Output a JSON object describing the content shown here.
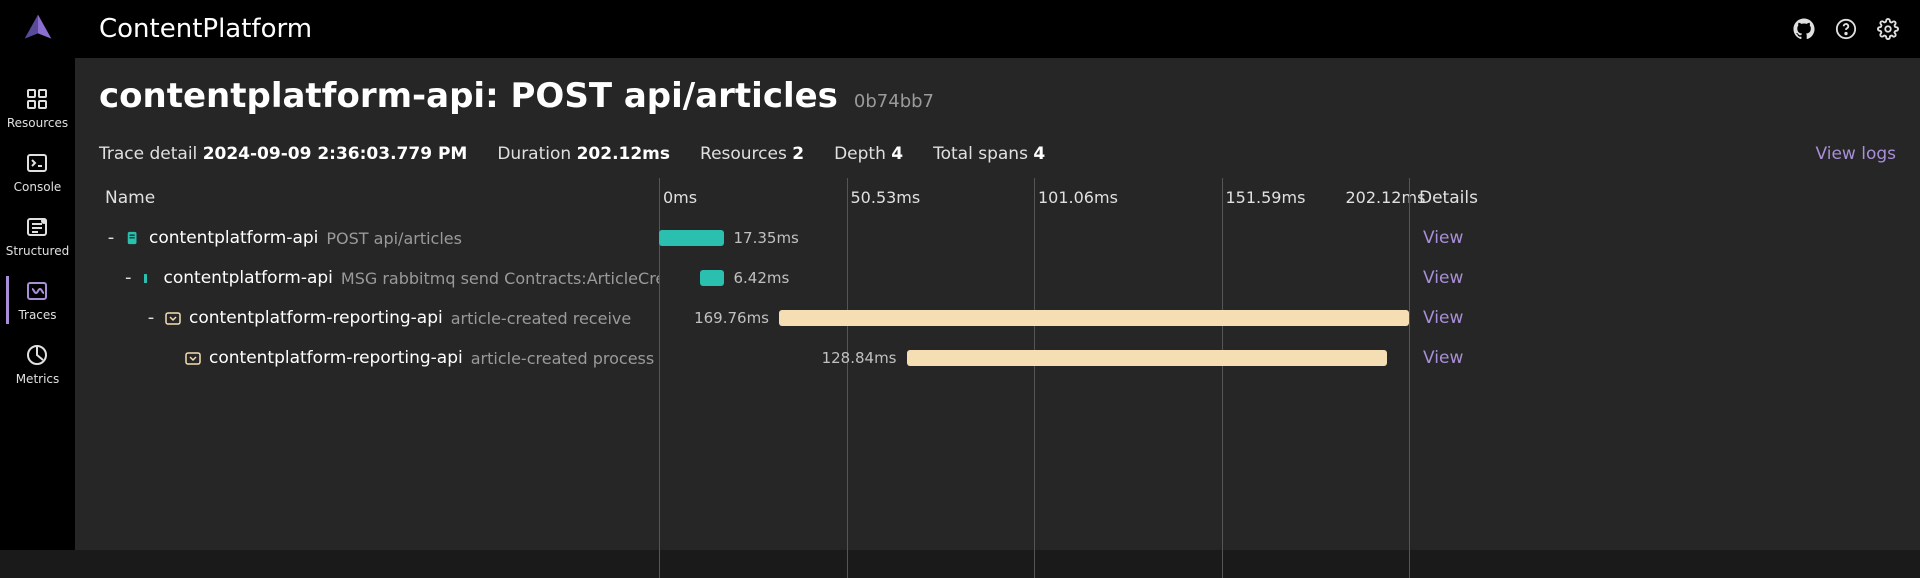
{
  "app_title": "ContentPlatform",
  "sidebar": {
    "items": [
      {
        "label": "Resources",
        "icon": "grid"
      },
      {
        "label": "Console",
        "icon": "terminal"
      },
      {
        "label": "Structured",
        "icon": "list"
      },
      {
        "label": "Traces",
        "icon": "traces",
        "active": true
      },
      {
        "label": "Metrics",
        "icon": "chart"
      }
    ]
  },
  "topbar_icons": [
    "github",
    "help",
    "settings"
  ],
  "page": {
    "title": "contentplatform-api: POST api/articles",
    "hash": "0b74bb7"
  },
  "meta": {
    "trace_detail_label": "Trace detail",
    "trace_detail_value": "2024-09-09 2:36:03.779 PM",
    "duration_label": "Duration",
    "duration_value": "202.12ms",
    "resources_label": "Resources",
    "resources_value": "2",
    "depth_label": "Depth",
    "depth_value": "4",
    "total_spans_label": "Total spans",
    "total_spans_value": "4",
    "view_logs": "View logs"
  },
  "columns": {
    "name": "Name",
    "details": "Details"
  },
  "timeline": {
    "total_ms": 202.12,
    "ticks": [
      {
        "pos_pct": 0,
        "label": "0ms"
      },
      {
        "pos_pct": 25,
        "label": "50.53ms"
      },
      {
        "pos_pct": 50,
        "label": "101.06ms"
      },
      {
        "pos_pct": 75,
        "label": "151.59ms"
      },
      {
        "pos_pct": 91,
        "label": "202.12ms"
      }
    ],
    "grid_positions_pct": [
      0,
      25,
      50,
      75,
      100
    ]
  },
  "colors": {
    "teal": "#2bbfb0",
    "yellow": "#f5deb3",
    "link": "#a88fd8"
  },
  "spans": [
    {
      "indent": 0,
      "toggle": "-",
      "icon": "doc",
      "icon_color": "#2bbfb0",
      "name": "contentplatform-api",
      "op": "POST api/articles",
      "duration_label": "17.35ms",
      "bar_left_pct": 0,
      "bar_width_pct": 8.6,
      "bar_color": "#2bbfb0",
      "label_side": "right",
      "details": "View"
    },
    {
      "indent": 1,
      "toggle": "-",
      "icon": "bar",
      "icon_color": "#2bbfb0",
      "name": "contentplatform-api",
      "op": "MSG rabbitmq send Contracts:ArticleCreatedEvent",
      "duration_label": "6.42ms",
      "bar_left_pct": 5.4,
      "bar_width_pct": 3.2,
      "bar_color": "#2bbfb0",
      "label_side": "right",
      "details": "View"
    },
    {
      "indent": 2,
      "toggle": "-",
      "icon": "recv",
      "icon_color": "#f5deb3",
      "name": "contentplatform-reporting-api",
      "op": "article-created receive",
      "duration_label": "169.76ms",
      "bar_left_pct": 16,
      "bar_width_pct": 84,
      "bar_color": "#f5deb3",
      "label_side": "left",
      "details": "View"
    },
    {
      "indent": 3,
      "toggle": "",
      "icon": "recv",
      "icon_color": "#f5deb3",
      "name": "contentplatform-reporting-api",
      "op": "article-created process",
      "duration_label": "128.84ms",
      "bar_left_pct": 33,
      "bar_width_pct": 64,
      "bar_color": "#f5deb3",
      "label_side": "left",
      "details": "View"
    }
  ]
}
